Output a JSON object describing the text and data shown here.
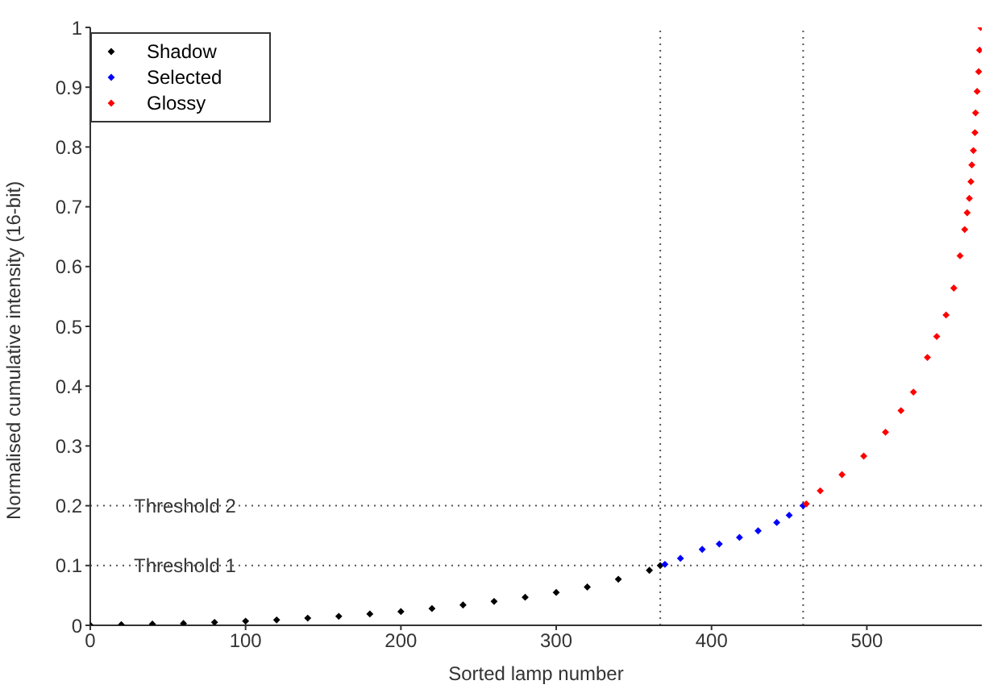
{
  "chart_data": {
    "type": "scatter",
    "xlabel": "Sorted lamp number",
    "ylabel": "Normalised cumulative intensity (16-bit)",
    "xlim": [
      0,
      574
    ],
    "ylim": [
      0,
      1
    ],
    "xticks": [
      0,
      100,
      200,
      300,
      400,
      500
    ],
    "yticks": [
      0,
      0.1,
      0.2,
      0.3,
      0.4,
      0.5,
      0.6,
      0.7,
      0.8,
      0.9,
      1
    ],
    "grid": false,
    "legend": "top left",
    "marker": "diamond",
    "series": [
      {
        "name": "Shadow",
        "color": "#000000",
        "x": [
          0,
          20,
          40,
          60,
          80,
          100,
          120,
          140,
          160,
          180,
          200,
          220,
          240,
          260,
          280,
          300,
          320,
          340,
          360,
          367
        ],
        "values": [
          0,
          0.001,
          0.002,
          0.003,
          0.005,
          0.007,
          0.009,
          0.012,
          0.015,
          0.019,
          0.023,
          0.028,
          0.034,
          0.04,
          0.047,
          0.055,
          0.064,
          0.077,
          0.092,
          0.1
        ]
      },
      {
        "name": "Selected",
        "color": "#0000ff",
        "x": [
          370,
          380,
          394,
          405,
          418,
          430,
          442,
          450,
          459
        ],
        "values": [
          0.102,
          0.112,
          0.127,
          0.136,
          0.147,
          0.158,
          0.172,
          0.184,
          0.2
        ]
      },
      {
        "name": "Glossy",
        "color": "#ff0000",
        "x": [
          461,
          470,
          484,
          498,
          512,
          522,
          530,
          539,
          545,
          551,
          556,
          560,
          563,
          564.6,
          566,
          567,
          567.6,
          568.6,
          569.6,
          570,
          571,
          572,
          572.6,
          573.3
        ],
        "values": [
          0.203,
          0.225,
          0.252,
          0.283,
          0.323,
          0.359,
          0.39,
          0.448,
          0.483,
          0.519,
          0.564,
          0.618,
          0.662,
          0.69,
          0.714,
          0.742,
          0.77,
          0.794,
          0.824,
          0.857,
          0.893,
          0.926,
          0.962,
          1
        ]
      }
    ],
    "ref_lines": [
      {
        "axis": "y",
        "value": 0.1,
        "label": "Threshold 1",
        "color": "#555555",
        "line_style": "dotted"
      },
      {
        "axis": "y",
        "value": 0.2,
        "label": "Threshold 2",
        "color": "#555555",
        "line_style": "dotted"
      },
      {
        "axis": "x",
        "value": 367,
        "color": "#555555",
        "line_style": "dotted"
      },
      {
        "axis": "x",
        "value": 459,
        "color": "#555555",
        "line_style": "dotted"
      }
    ]
  }
}
